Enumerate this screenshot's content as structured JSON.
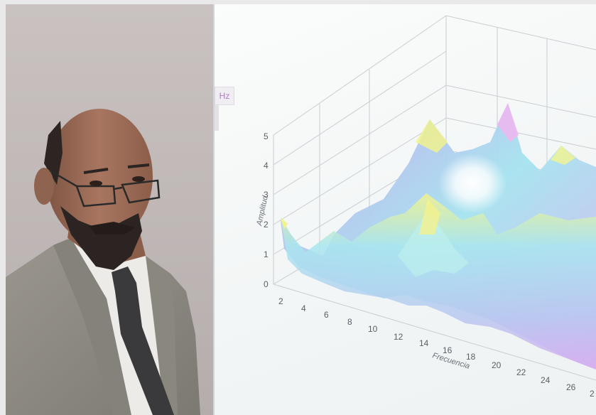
{
  "chart_data": {
    "type": "surface",
    "partial_unit_label": "Hz",
    "xlabel": "Frecuencia",
    "ylabel": "Amplitud",
    "x_ticks": [
      "2",
      "4",
      "6",
      "8",
      "10",
      "12",
      "14",
      "16",
      "18",
      "20",
      "22",
      "24",
      "26",
      "2"
    ],
    "y_ticks": [
      "0",
      "1",
      "2",
      "3",
      "4",
      "5"
    ],
    "ylim": [
      0,
      5
    ],
    "colors": {
      "surface_low": "#c9a6ee",
      "surface_mid": "#a9e6ef",
      "surface_peak": "#f3f38a",
      "grid": "#c8cdd2"
    }
  },
  "scene": {
    "subject": "man-in-grey-suit-with-glasses",
    "colors": {
      "wall": "#c4bdbc",
      "suit": "#8d8a83",
      "tie": "#3a3a3d",
      "skin": "#9a6a52"
    }
  }
}
